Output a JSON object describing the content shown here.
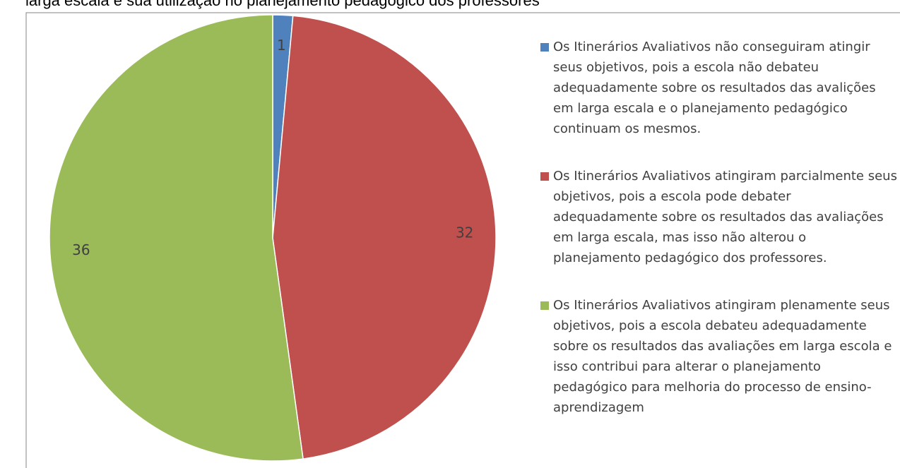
{
  "chart_data": {
    "type": "pie",
    "title": "larga escala e sua utilização no planejamento pedagógico dos professores",
    "categories": [
      "Os Itinerários Avaliativos não conseguiram atingir seus objetivos, pois a escola não debateu adequadamente sobre os resultados das avalições em larga escala e o planejamento pedagógico continuam os mesmos.",
      "Os Itinerários Avaliativos atingiram parcialmente seus objetivos, pois a escola pode debater adequadamente sobre os resultados das avaliações em larga escala, mas isso não alterou o planejamento pedagógico dos professores.",
      "Os Itinerários Avaliativos atingiram plenamente seus objetivos, pois a escola debateu adequadamente sobre os resultados das avaliações em larga escola e isso contribui para alterar o planejamento pedagógico para melhoria do processo de ensino-aprendizagem"
    ],
    "values": [
      1,
      32,
      36
    ],
    "colors": [
      "#4f81bd",
      "#c0504d",
      "#9bbb59"
    ],
    "legend": "right"
  }
}
